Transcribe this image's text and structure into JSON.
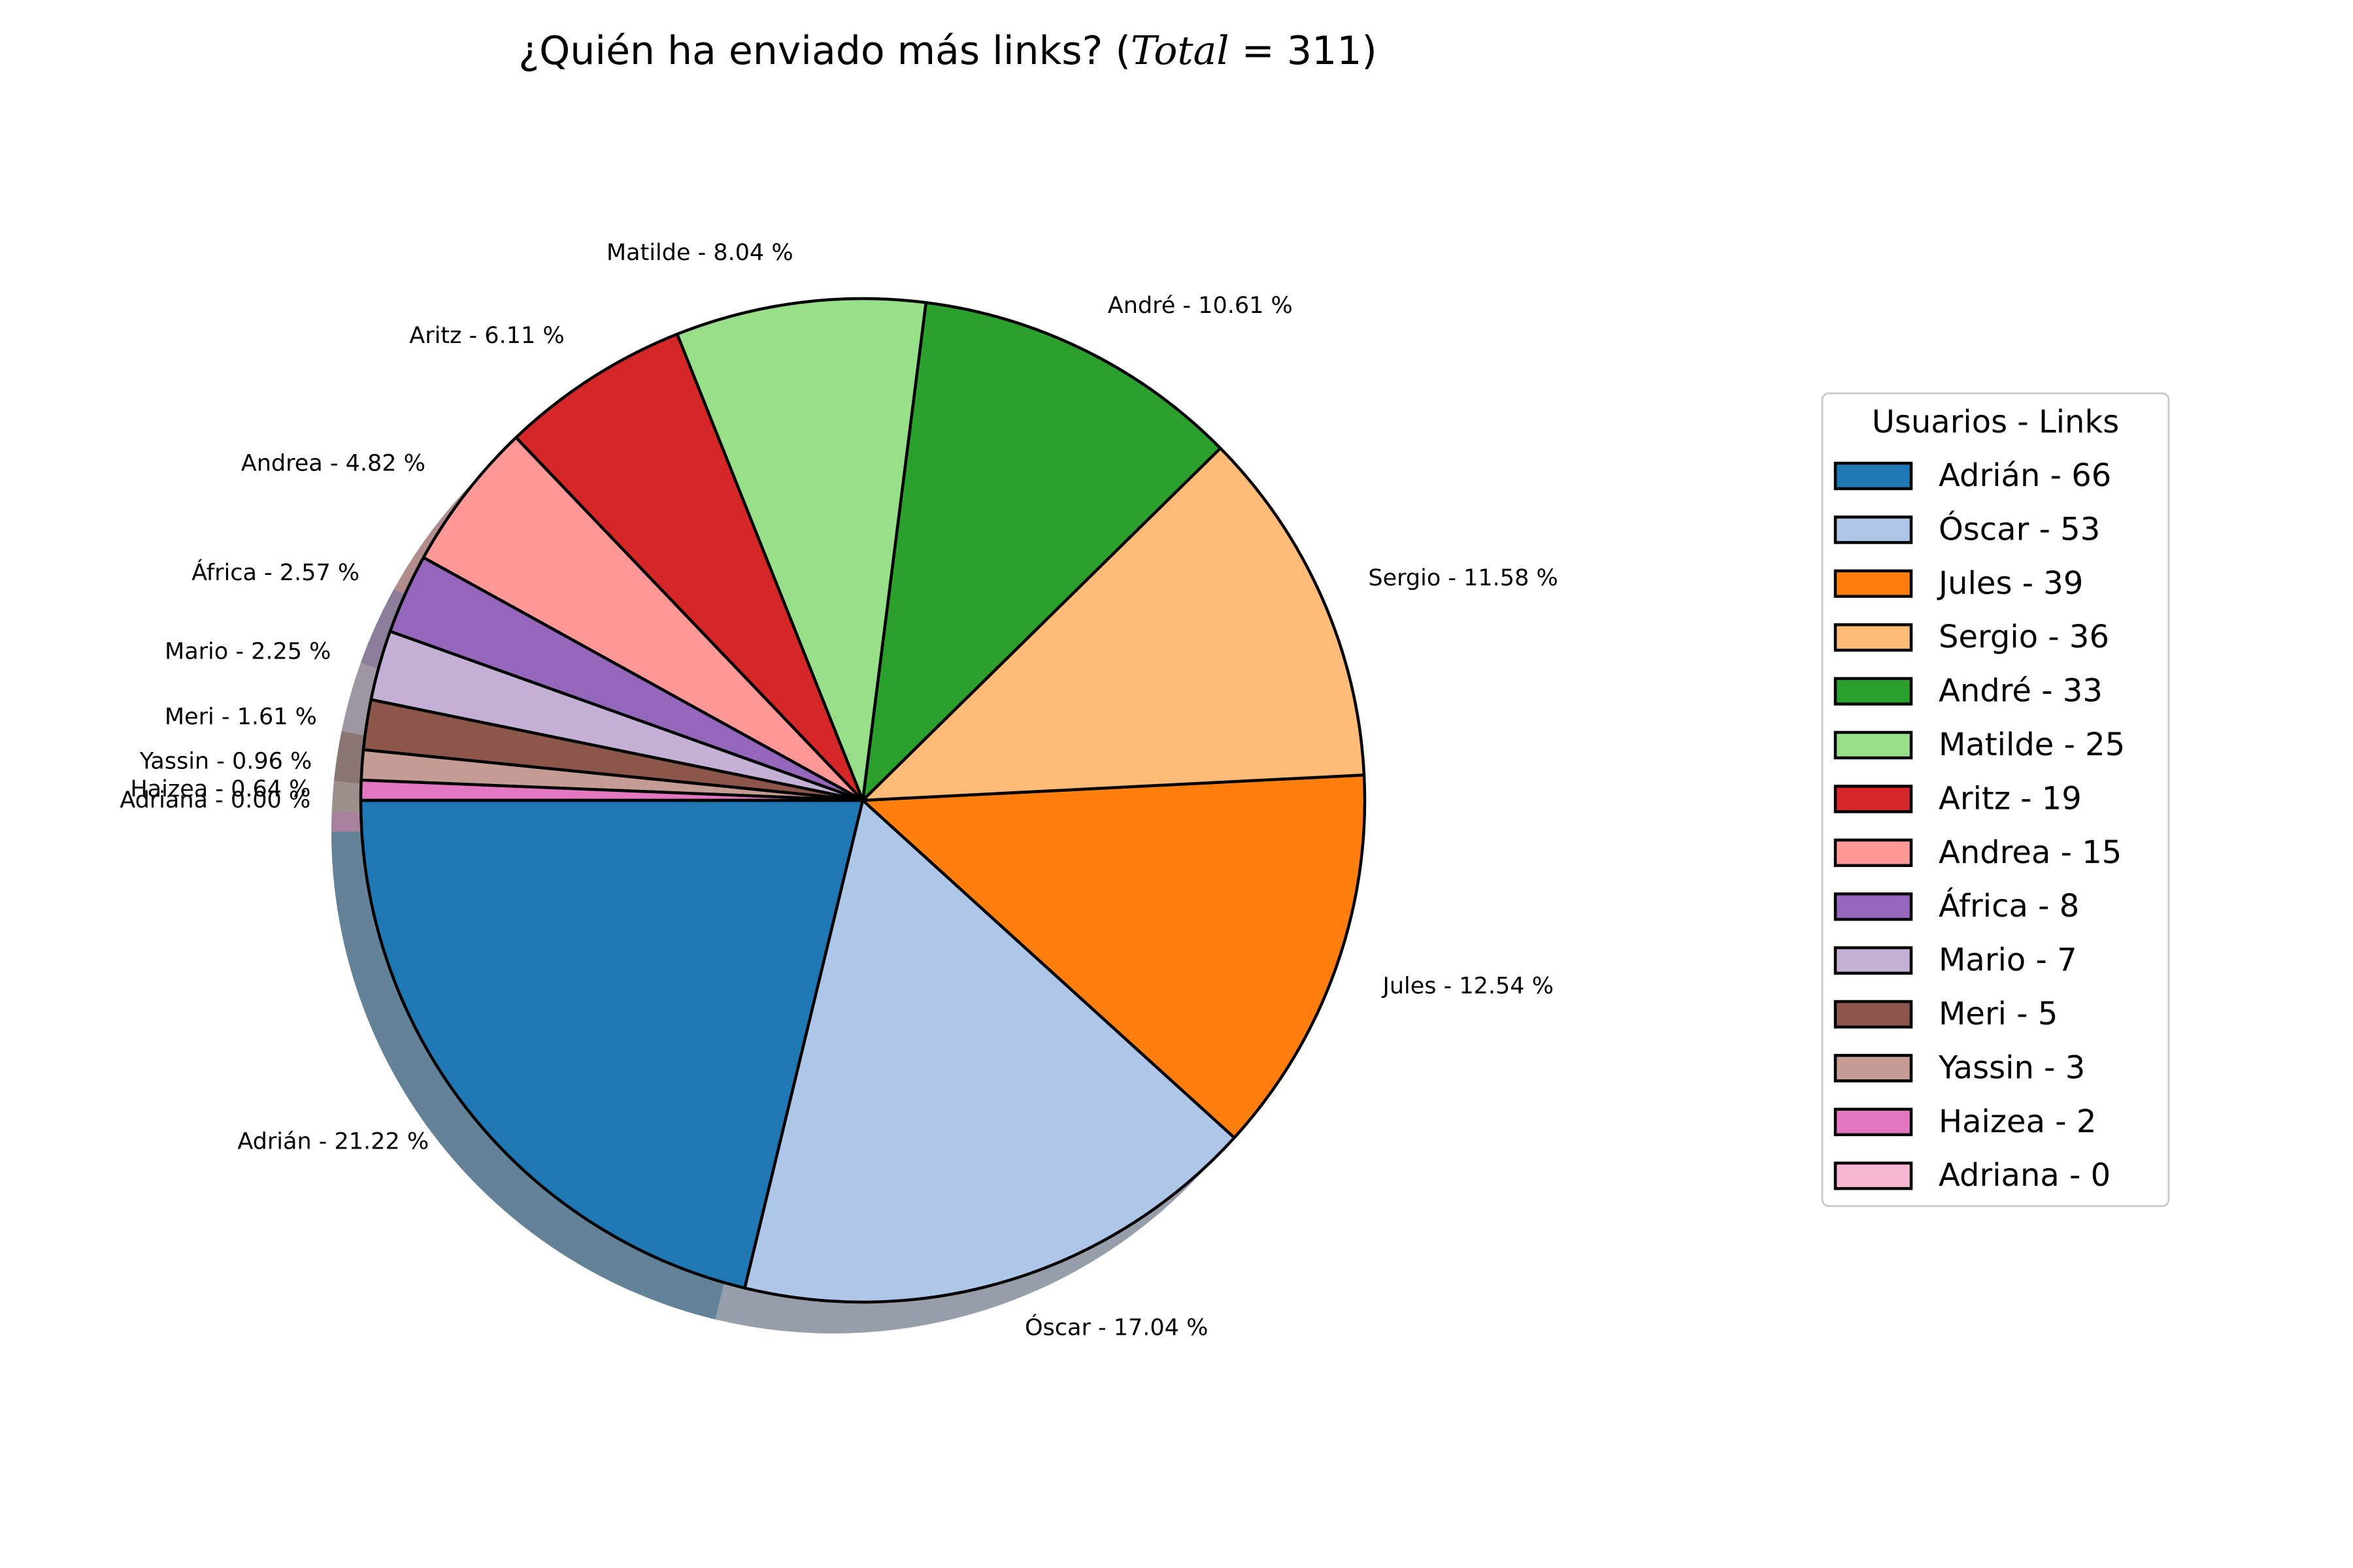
{
  "chart_data": {
    "type": "pie",
    "title": {
      "prefix": "¿Quién ha enviado más links? (",
      "math_word": "Total",
      "math_rest": " = 311",
      "suffix": ")"
    },
    "total": 311,
    "categories": [
      "Adrián",
      "Óscar",
      "Jules",
      "Sergio",
      "André",
      "Matilde",
      "Aritz",
      "Andrea",
      "África",
      "Mario",
      "Meri",
      "Yassin",
      "Haizea",
      "Adriana"
    ],
    "values": [
      66,
      53,
      39,
      36,
      33,
      25,
      19,
      15,
      8,
      7,
      5,
      3,
      2,
      0
    ],
    "slice_labels": [
      "Adrián - 21.22 %",
      "Óscar - 17.04 %",
      "Jules - 12.54 %",
      "Sergio - 11.58 %",
      "André - 10.61 %",
      "Matilde - 8.04 %",
      "Aritz - 6.11 %",
      "Andrea - 4.82 %",
      "África - 2.57 %",
      "Mario - 2.25 %",
      "Meri - 1.61 %",
      "Yassin - 0.96 %",
      "Haizea - 0.64 %",
      "Adriana - 0.00 %"
    ],
    "colors": [
      "#1f77b4",
      "#aec7e8",
      "#ff7f0e",
      "#ffbb78",
      "#2ca02c",
      "#98df8a",
      "#d62728",
      "#ff9896",
      "#9467bd",
      "#c5b0d5",
      "#8c564b",
      "#c49c94",
      "#e377c2",
      "#f7b6d2"
    ],
    "start_angle_deg": 180,
    "direction": "counterclockwise",
    "shadow": true,
    "legend": {
      "title": "Usuarios - Links",
      "position": "right",
      "entries": [
        "Adrián - 66",
        "Óscar - 53",
        "Jules - 39",
        "Sergio - 36",
        "André - 33",
        "Matilde - 25",
        "Aritz - 19",
        "Andrea - 15",
        "África - 8",
        "Mario - 7",
        "Meri - 5",
        "Yassin - 3",
        "Haizea - 2",
        "Adriana - 0"
      ]
    }
  }
}
